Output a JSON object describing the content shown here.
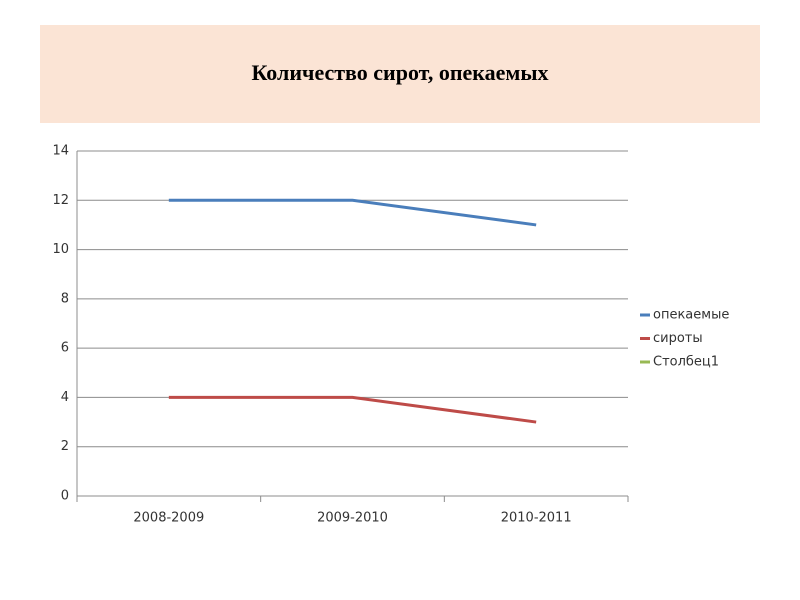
{
  "chart_data": {
    "type": "line",
    "title": "Количество сирот, опекаемых",
    "categories": [
      "2008-2009",
      "2009-2010",
      "2010-2011"
    ],
    "series": [
      {
        "name": "опекаемые",
        "color": "#4a7ebb",
        "values": [
          12,
          12,
          11
        ]
      },
      {
        "name": "сироты",
        "color": "#be4b48",
        "values": [
          4,
          4,
          3
        ]
      },
      {
        "name": "Столбец1",
        "color": "#98b954",
        "values": [
          null,
          null,
          null
        ]
      }
    ],
    "ylim": [
      0,
      14
    ],
    "yticks": [
      0,
      2,
      4,
      6,
      8,
      10,
      12,
      14
    ],
    "grid": true,
    "legend": "right"
  }
}
